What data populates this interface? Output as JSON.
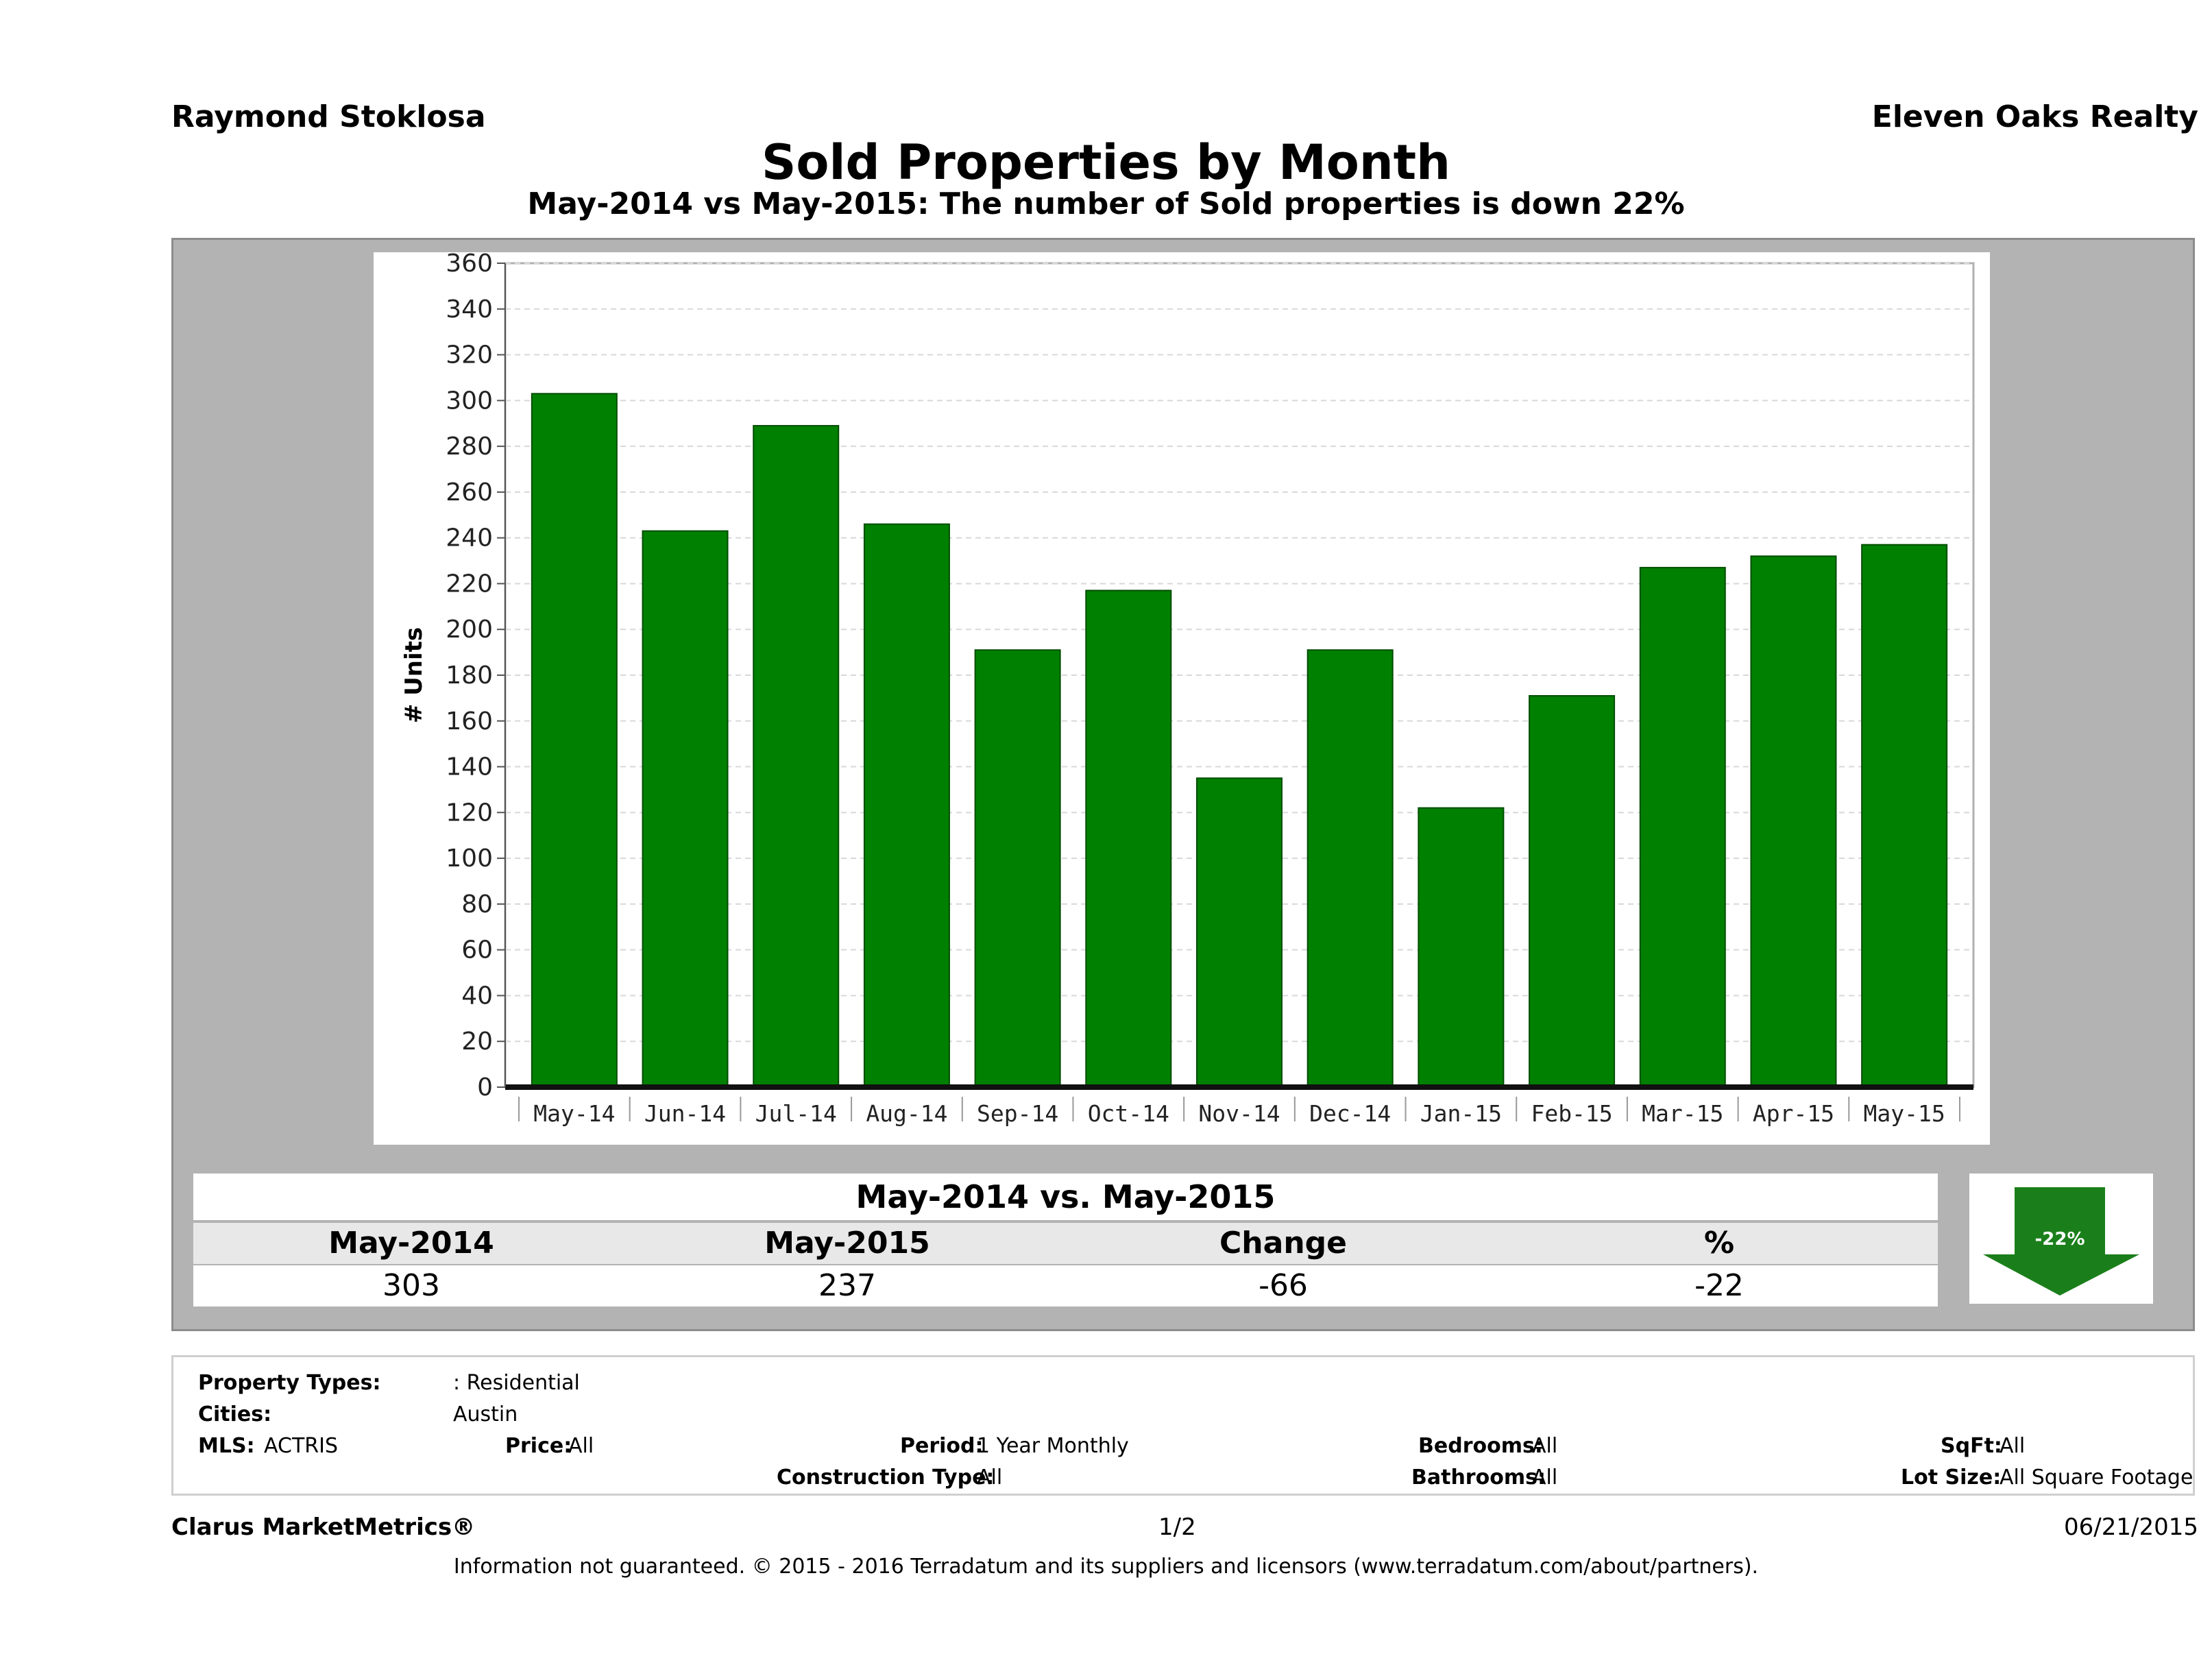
{
  "header": {
    "agent": "Raymond Stoklosa",
    "company": "Eleven Oaks Realty",
    "title": "Sold Properties by Month",
    "subtitle": "May-2014 vs May-2015: The number of Sold  properties is down 22%"
  },
  "chart_data": {
    "type": "bar",
    "categories": [
      "May-14",
      "Jun-14",
      "Jul-14",
      "Aug-14",
      "Sep-14",
      "Oct-14",
      "Nov-14",
      "Dec-14",
      "Jan-15",
      "Feb-15",
      "Mar-15",
      "Apr-15",
      "May-15"
    ],
    "values": [
      303,
      243,
      289,
      246,
      191,
      217,
      135,
      191,
      122,
      171,
      227,
      232,
      237
    ],
    "ylabel": "# Units",
    "ylim": [
      0,
      360
    ],
    "yticks": [
      0,
      20,
      40,
      60,
      80,
      100,
      120,
      140,
      160,
      180,
      200,
      220,
      240,
      260,
      280,
      300,
      320,
      340,
      360
    ],
    "grid": true,
    "bar_color": "#008000"
  },
  "comparison": {
    "title": "May-2014 vs. May-2015",
    "headers": [
      "May-2014",
      "May-2015",
      "Change",
      "%"
    ],
    "values": [
      "303",
      "237",
      "-66",
      "-22"
    ],
    "badge_label": "-22%",
    "badge_icon": "down-arrow-icon",
    "badge_color": "#1a7f1a"
  },
  "filters": {
    "property_types_label": "Property Types:",
    "property_types_value": ": Residential",
    "cities_label": "Cities:",
    "cities_value": "Austin",
    "mls_label": "MLS:",
    "mls_value": "ACTRIS",
    "price_label": "Price:",
    "price_value": "All",
    "period_label": "Period:",
    "period_value": "1 Year Monthly",
    "construction_label": "Construction Type:",
    "construction_value": "All",
    "bedrooms_label": "Bedrooms:",
    "bedrooms_value": "All",
    "bathrooms_label": "Bathrooms:",
    "bathrooms_value": "All",
    "sqft_label": "SqFt:",
    "sqft_value": "All",
    "lot_label": "Lot Size:",
    "lot_value": "All Square Footage"
  },
  "footer": {
    "brand": "Clarus MarketMetrics®",
    "page": "1/2",
    "date": "06/21/2015",
    "disclaimer": "Information not guaranteed. © 2015 - 2016 Terradatum and its suppliers and licensors (www.terradatum.com/about/partners)."
  }
}
